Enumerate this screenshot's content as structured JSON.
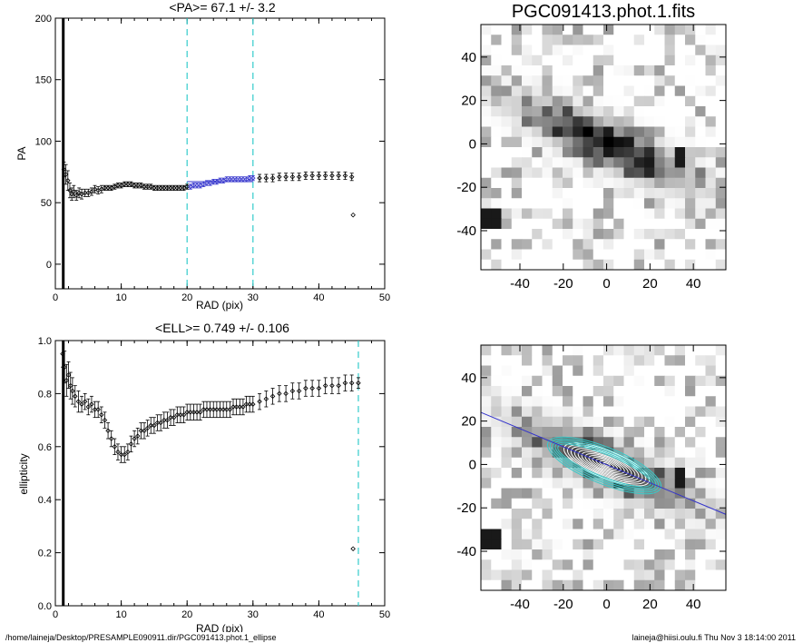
{
  "chart_data": [
    {
      "type": "scatter",
      "title": "<PA>=  67.1 +/-   3.2",
      "xlabel": "RAD (pix)",
      "ylabel": "PA",
      "xlim": [
        0,
        50
      ],
      "ylim": [
        -20,
        200
      ],
      "xticks": [
        0,
        10,
        20,
        30,
        40,
        50
      ],
      "yticks": [
        0,
        50,
        100,
        150,
        200
      ],
      "reference_lines_x": [
        20,
        30
      ],
      "vertical_bar_x": 1.2,
      "series": [
        {
          "color": "#000000",
          "x": [
            1.3,
            1.6,
            1.9,
            2.2,
            2.5,
            2.8,
            3.2,
            3.6,
            4,
            4.5,
            5,
            5.5,
            6,
            6.5,
            7,
            7.5,
            8,
            8.5,
            9,
            9.5,
            10,
            10.5,
            11,
            11.5,
            12,
            12.5,
            13,
            13.5,
            14,
            14.5,
            15,
            15.5,
            16,
            16.5,
            17,
            17.5,
            18,
            18.5,
            19,
            19.5,
            20,
            31,
            32,
            33,
            34,
            35,
            36,
            37,
            38,
            39,
            40,
            41,
            42,
            43,
            44,
            45,
            45.2
          ],
          "y": [
            77,
            73,
            68,
            60,
            57,
            59,
            56,
            58,
            57,
            58,
            58,
            59,
            61,
            60,
            61,
            62,
            62,
            62,
            63,
            64,
            64,
            65,
            65,
            65,
            64,
            64,
            64,
            63,
            63,
            63,
            62,
            62,
            62,
            62,
            62,
            62,
            62,
            62,
            62,
            62,
            63,
            70,
            70,
            70,
            71,
            71,
            71,
            71,
            72,
            72,
            72,
            72,
            72,
            72,
            72,
            71,
            40
          ],
          "err": [
            6,
            8,
            8,
            6,
            5,
            5,
            4,
            4,
            4,
            3,
            3,
            3,
            3,
            3,
            3,
            2,
            2,
            2,
            2,
            2,
            2,
            2,
            2,
            2,
            2,
            2,
            2,
            2,
            2,
            2,
            2,
            2,
            2,
            2,
            2,
            2,
            2,
            2,
            2,
            2,
            2,
            3,
            3,
            3,
            3,
            3,
            3,
            3,
            3,
            3,
            3,
            3,
            3,
            3,
            3,
            3,
            0
          ]
        },
        {
          "color": "#3333cc",
          "x": [
            20.5,
            21,
            21.5,
            22,
            22.5,
            23,
            23.5,
            24,
            24.5,
            25,
            25.5,
            26,
            26.5,
            27,
            27.5,
            28,
            28.5,
            29,
            29.5,
            30
          ],
          "y": [
            63,
            64,
            64,
            64,
            65,
            66,
            66,
            67,
            67,
            68,
            68,
            69,
            69,
            69,
            69,
            69,
            69,
            69,
            70,
            70
          ],
          "err": [
            2,
            2,
            2,
            2,
            2,
            2,
            2,
            2,
            2,
            2,
            2,
            2,
            2,
            2,
            2,
            2,
            2,
            2,
            2,
            2
          ]
        }
      ],
      "mean_line": {
        "value": 67.1,
        "x": [
          20,
          30
        ]
      }
    },
    {
      "type": "scatter",
      "title": "<ELL>= 0.749 +/-  0.106",
      "xlabel": "RAD (pix)",
      "ylabel": "ellipticity",
      "xlim": [
        0,
        50
      ],
      "ylim": [
        0,
        1
      ],
      "xticks": [
        0,
        10,
        20,
        30,
        40,
        50
      ],
      "yticks": [
        0.0,
        0.2,
        0.4,
        0.6,
        0.8,
        1.0
      ],
      "ytick_labels": [
        "0.0",
        "0.2",
        "0.4",
        "0.6",
        "0.8",
        "1.0"
      ],
      "reference_lines_x": [
        46
      ],
      "vertical_bar_x": 1.2,
      "series": [
        {
          "color": "#000000",
          "x": [
            1.1,
            1.4,
            1.7,
            2,
            2.3,
            2.6,
            3,
            3.5,
            4,
            4.5,
            5,
            5.5,
            6,
            6.5,
            7,
            7.5,
            8,
            8.5,
            9,
            9.5,
            10,
            10.5,
            11,
            11.5,
            12,
            12.5,
            13,
            13.5,
            14,
            14.5,
            15,
            15.5,
            16,
            16.5,
            17,
            17.5,
            18,
            18.5,
            19,
            19.5,
            20,
            20.5,
            21,
            21.5,
            22,
            22.5,
            23,
            23.5,
            24,
            24.5,
            25,
            25.5,
            26,
            26.5,
            27,
            27.5,
            28,
            28.5,
            29,
            29.5,
            30,
            31,
            32,
            33,
            34,
            35,
            36,
            37,
            38,
            39,
            40,
            41,
            42,
            43,
            44,
            45,
            46
          ],
          "y": [
            0.95,
            0.9,
            0.85,
            0.87,
            0.83,
            0.81,
            0.79,
            0.77,
            0.76,
            0.77,
            0.75,
            0.76,
            0.74,
            0.74,
            0.72,
            0.7,
            0.66,
            0.63,
            0.6,
            0.58,
            0.57,
            0.57,
            0.58,
            0.61,
            0.63,
            0.64,
            0.66,
            0.66,
            0.67,
            0.68,
            0.68,
            0.69,
            0.69,
            0.7,
            0.7,
            0.71,
            0.71,
            0.72,
            0.72,
            0.72,
            0.73,
            0.73,
            0.73,
            0.73,
            0.73,
            0.74,
            0.74,
            0.74,
            0.74,
            0.74,
            0.74,
            0.74,
            0.74,
            0.74,
            0.75,
            0.75,
            0.75,
            0.75,
            0.76,
            0.76,
            0.76,
            0.77,
            0.78,
            0.79,
            0.8,
            0.8,
            0.81,
            0.81,
            0.82,
            0.82,
            0.82,
            0.83,
            0.83,
            0.83,
            0.84,
            0.84,
            0.84
          ],
          "err": [
            0.05,
            0.06,
            0.06,
            0.05,
            0.05,
            0.05,
            0.04,
            0.04,
            0.03,
            0.03,
            0.03,
            0.03,
            0.03,
            0.03,
            0.03,
            0.03,
            0.03,
            0.03,
            0.03,
            0.03,
            0.03,
            0.03,
            0.03,
            0.03,
            0.03,
            0.03,
            0.03,
            0.03,
            0.03,
            0.03,
            0.03,
            0.03,
            0.03,
            0.03,
            0.03,
            0.03,
            0.03,
            0.03,
            0.03,
            0.03,
            0.03,
            0.03,
            0.03,
            0.03,
            0.03,
            0.03,
            0.03,
            0.03,
            0.03,
            0.03,
            0.03,
            0.03,
            0.03,
            0.03,
            0.03,
            0.03,
            0.03,
            0.03,
            0.03,
            0.03,
            0.03,
            0.03,
            0.03,
            0.03,
            0.03,
            0.03,
            0.03,
            0.03,
            0.03,
            0.03,
            0.03,
            0.03,
            0.03,
            0.03,
            0.03,
            0.03,
            0.02
          ]
        },
        {
          "color": "#000000",
          "x": [
            45.2
          ],
          "y": [
            0.215
          ],
          "err": [
            0
          ]
        }
      ]
    },
    {
      "type": "heatmap",
      "title": "PGC091413.phot.1.fits",
      "xlim": [
        -58,
        55
      ],
      "ylim": [
        -58,
        55
      ],
      "xticks": [
        -40,
        -20,
        0,
        20,
        40
      ],
      "yticks": [
        -40,
        -20,
        0,
        20,
        40
      ]
    },
    {
      "type": "heatmap",
      "title": "",
      "xlim": [
        -58,
        55
      ],
      "ylim": [
        -58,
        55
      ],
      "xticks": [
        -40,
        -20,
        0,
        20,
        40
      ],
      "yticks": [
        -40,
        -20,
        0,
        20,
        40
      ],
      "major_axis_line": {
        "x": [
          -58,
          55
        ],
        "y": [
          24,
          -23
        ],
        "color": "#3333cc"
      },
      "isophote_colors": [
        "#ffffff",
        "#33cccc"
      ]
    }
  ],
  "footer": {
    "left": "/home/laineja/Desktop/PRESAMPLE090911.dir/PGC091413.phot.1_ellipse",
    "right": "laineja@hiisi.oulu.fi  Thu Nov  3 18:14:00 2011"
  }
}
